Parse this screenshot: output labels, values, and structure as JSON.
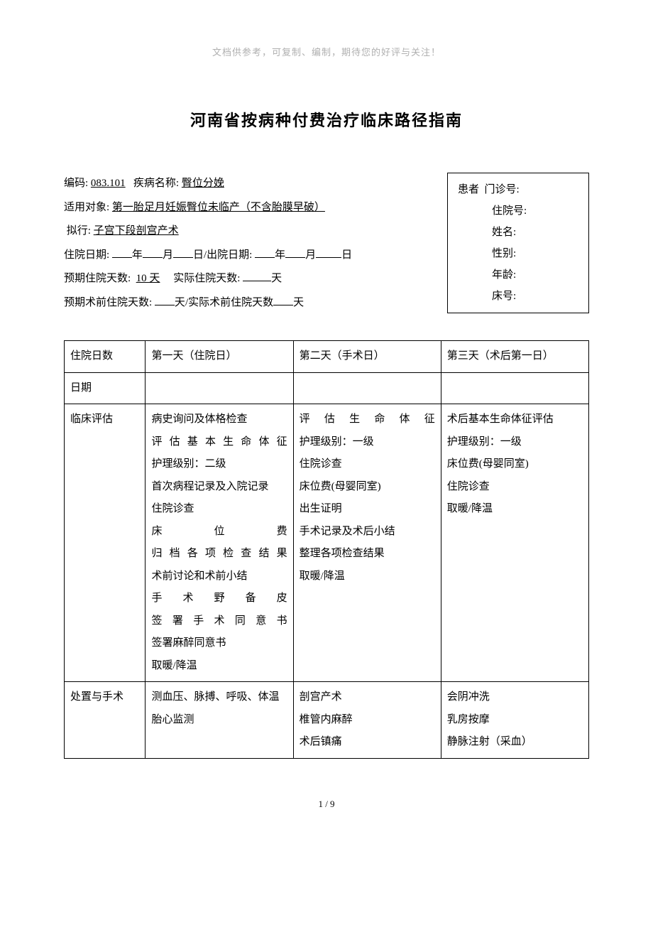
{
  "header_note": "文档供参考，可复制、编制，期待您的好评与关注！",
  "title": "河南省按病种付费治疗临床路径指南",
  "info": {
    "code_label": "编码:",
    "code": "083.101",
    "disease_label": "疾病名称:",
    "disease": "臀位分娩",
    "subject_label": "适用对象:",
    "subject": "第一胎足月妊娠臀位未临产（不含胎膜早破）",
    "plan_label": "拟行:",
    "plan": "子宫下段剖宫产术",
    "admit_label": "住院日期:",
    "discharge_label": "出院日期:",
    "year": "年",
    "month": "月",
    "day": "日",
    "expected_days_label": "预期住院天数:",
    "expected_days": "10 天",
    "actual_days_label": "实际住院天数:",
    "days_unit": "天",
    "preop_expected_label": "预期术前住院天数:",
    "preop_actual_label": "实际术前住院天数"
  },
  "patient": {
    "header": "患者",
    "outpatient": "门诊号:",
    "inpatient": "住院号:",
    "name": "姓名:",
    "sex": "性别:",
    "age": "年龄:",
    "bed": "床号:"
  },
  "table": {
    "columns": [
      "住院日数",
      "第一天（住院日）",
      "第二天（手术日）",
      "第三天（术后第一日）"
    ],
    "rows": [
      {
        "label": "日期",
        "cells": [
          "",
          "",
          ""
        ]
      },
      {
        "label": "临床评估",
        "cells": [
          [
            "病史询问及体格检查",
            "评估基本生命体征",
            "护理级别：二级",
            "首次病程记录及入院记录",
            "住院诊查",
            "床位费",
            "归档各项检查结果",
            "术前讨论和术前小结",
            "手术野备皮",
            "签署手术同意书",
            "签署麻醉同意书",
            "取暖/降温"
          ],
          [
            "评估生命体征",
            "护理级别：一级",
            "住院诊查",
            "床位费(母婴同室)",
            "出生证明",
            "手术记录及术后小结",
            "整理各项检查结果",
            "取暖/降温"
          ],
          [
            "术后基本生命体征评估",
            "护理级别：一级",
            "床位费(母婴同室)",
            "住院诊查",
            "取暖/降温"
          ]
        ]
      },
      {
        "label": "处置与手术",
        "cells": [
          [
            "测血压、脉搏、呼吸、体温",
            "胎心监测"
          ],
          [
            "剖宫产术",
            "椎管内麻醉",
            "术后镇痛"
          ],
          [
            "会阴冲洗",
            "乳房按摩",
            "静脉注射（采血）"
          ]
        ]
      }
    ]
  },
  "page_num": "1 / 9"
}
